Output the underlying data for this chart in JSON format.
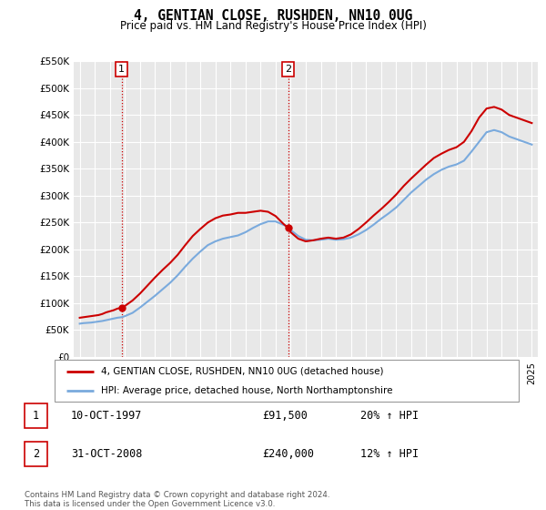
{
  "title": "4, GENTIAN CLOSE, RUSHDEN, NN10 0UG",
  "subtitle": "Price paid vs. HM Land Registry's House Price Index (HPI)",
  "legend_line1": "4, GENTIAN CLOSE, RUSHDEN, NN10 0UG (detached house)",
  "legend_line2": "HPI: Average price, detached house, North Northamptonshire",
  "footer1": "Contains HM Land Registry data © Crown copyright and database right 2024.",
  "footer2": "This data is licensed under the Open Government Licence v3.0.",
  "table": [
    {
      "num": "1",
      "date": "10-OCT-1997",
      "price": "£91,500",
      "hpi": "20% ↑ HPI"
    },
    {
      "num": "2",
      "date": "31-OCT-2008",
      "price": "£240,000",
      "hpi": "12% ↑ HPI"
    }
  ],
  "sale1_year": 1997.78,
  "sale1_price": 91500,
  "sale2_year": 2008.83,
  "sale2_price": 240000,
  "red_line_color": "#cc0000",
  "blue_line_color": "#7aaadd",
  "bg_color": "#ffffff",
  "chart_bg": "#e8e8e8",
  "grid_color": "#ffffff",
  "ylim": [
    0,
    550000
  ],
  "xlim_start": 1994.6,
  "xlim_end": 2025.4
}
